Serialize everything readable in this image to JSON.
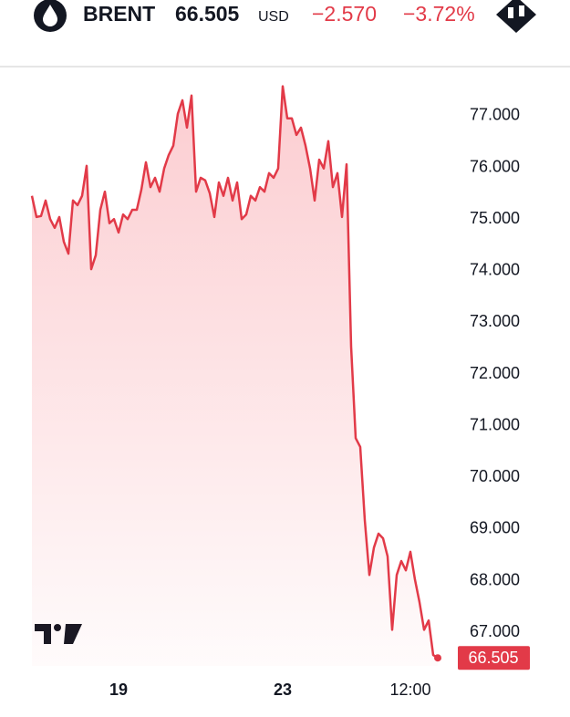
{
  "chart_data": {
    "type": "line",
    "symbol": "BRENT",
    "price": 66.505,
    "currency": "USD",
    "change": "−2.570",
    "change_percent": "−3.72%",
    "categories": [
      null,
      null,
      null,
      null,
      null,
      null,
      null,
      null,
      null,
      null,
      null,
      null,
      null,
      null,
      null,
      null,
      null,
      null,
      null,
      "19",
      null,
      null,
      null,
      null,
      null,
      null,
      null,
      null,
      null,
      null,
      null,
      null,
      null,
      null,
      null,
      null,
      null,
      null,
      null,
      null,
      null,
      null,
      null,
      null,
      null,
      null,
      null,
      null,
      null,
      null,
      null,
      null,
      null,
      null,
      null,
      "23",
      null,
      null,
      null,
      null,
      null,
      null,
      null,
      null,
      null,
      null,
      null,
      null,
      null,
      null,
      null,
      null,
      null,
      null,
      null,
      null,
      null,
      null,
      null,
      null,
      null,
      null,
      null,
      "12:00",
      null,
      null,
      null,
      null,
      null,
      null
    ],
    "series": [
      {
        "color": "#e23a48",
        "values": [
          75.45,
          75.04,
          75.06,
          75.36,
          75.0,
          74.83,
          75.04,
          74.56,
          74.33,
          75.36,
          75.27,
          75.45,
          76.03,
          74.03,
          74.3,
          75.18,
          75.53,
          74.92,
          75.0,
          74.74,
          75.09,
          75.0,
          75.18,
          75.18,
          75.57,
          76.1,
          75.62,
          75.8,
          75.53,
          75.98,
          76.24,
          76.42,
          77.04,
          77.3,
          76.77,
          77.39,
          75.53,
          75.8,
          75.75,
          75.5,
          75.04,
          75.71,
          75.45,
          75.8,
          75.36,
          75.71,
          75.0,
          75.09,
          75.45,
          75.36,
          75.62,
          75.53,
          75.89,
          75.8,
          75.98,
          77.57,
          76.95,
          76.95,
          76.63,
          76.77,
          76.42,
          75.98,
          75.36,
          76.15,
          75.98,
          76.51,
          75.62,
          75.89,
          75.04,
          76.06,
          72.53,
          70.76,
          70.59,
          69.17,
          68.11,
          68.64,
          68.91,
          68.82,
          68.47,
          67.05,
          68.11,
          68.38,
          68.2,
          68.56,
          68.02,
          67.58,
          67.05,
          67.23,
          66.56,
          66.505
        ]
      }
    ],
    "ylim": [
      66.35,
      77.74
    ],
    "yticks": [
      {
        "value": 67,
        "label": "67.000"
      },
      {
        "value": 68,
        "label": "68.000"
      },
      {
        "value": 69,
        "label": "69.000"
      },
      {
        "value": 70,
        "label": "70.000"
      },
      {
        "value": 71,
        "label": "71.000"
      },
      {
        "value": 72,
        "label": "72.000"
      },
      {
        "value": 73,
        "label": "73.000"
      },
      {
        "value": 74,
        "label": "74.000"
      },
      {
        "value": 75,
        "label": "75.000"
      },
      {
        "value": 76,
        "label": "76.000"
      },
      {
        "value": 77,
        "label": "77.000"
      }
    ],
    "grid": false
  }
}
